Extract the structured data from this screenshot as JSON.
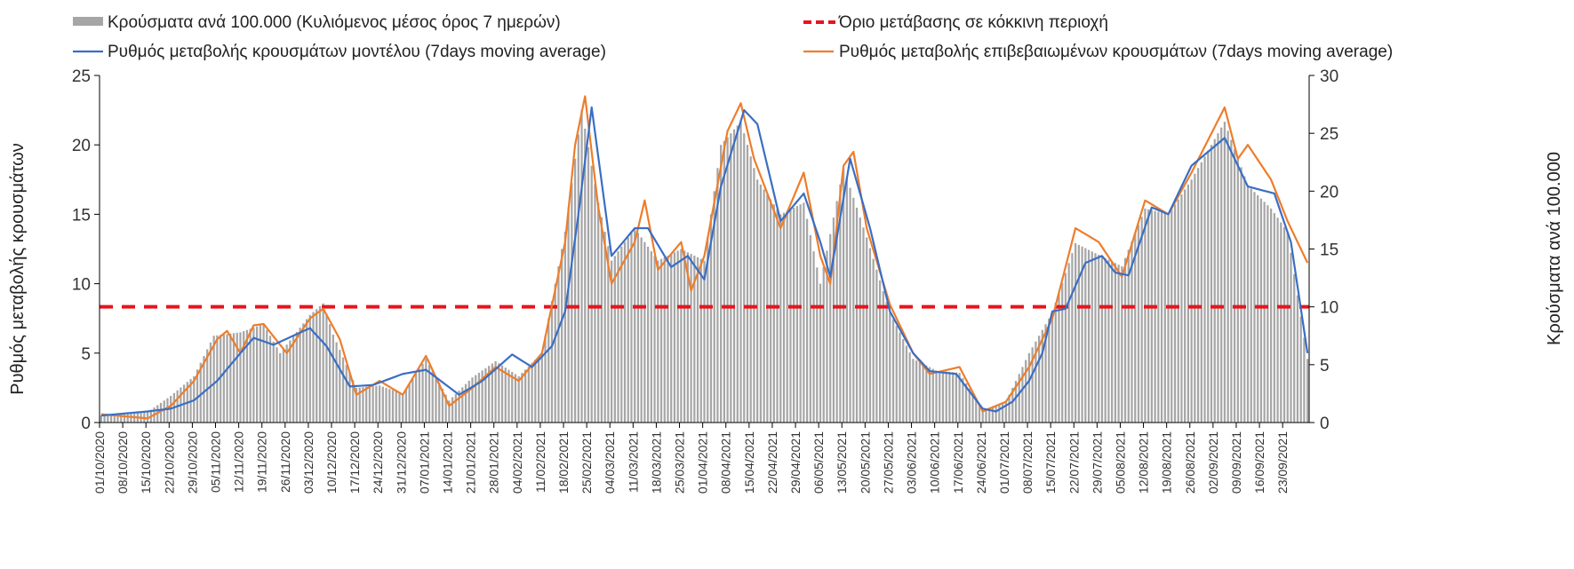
{
  "chart_data": {
    "type": "bar",
    "title": "",
    "grid": false,
    "legend_position": "top",
    "legend": {
      "bars": "Κρούσματα ανά 100.000 (Κυλιόμενος μέσος όρος 7 ημερών)",
      "threshold": "Όριο μετάβασης σε κόκκινη περιοχή",
      "model": "Ρυθμός μεταβολής κρουσμάτων μοντέλου (7days moving average)",
      "confirmed": "Ρυθμός μεταβολής επιβεβαιωμένων κρουσμάτων (7days moving average)"
    },
    "y_left": {
      "label": "Ρυθμός μεταβολής κρουσμάτων",
      "min": 0,
      "max": 25,
      "ticks": [
        "0",
        "5",
        "10",
        "15",
        "20",
        "25"
      ]
    },
    "y_right": {
      "label": "Κρούσματα ανά 100.000",
      "min": 0,
      "max": 30,
      "ticks": [
        "0",
        "5",
        "10",
        "15",
        "20",
        "25",
        "30"
      ]
    },
    "x": {
      "start_date": "01/10/2020",
      "end_date": "30/09/2021",
      "tick_labels": [
        "01/10/2020",
        "08/10/2020",
        "15/10/2020",
        "22/10/2020",
        "29/10/2020",
        "05/11/2020",
        "12/11/2020",
        "19/11/2020",
        "26/11/2020",
        "03/12/2020",
        "10/12/2020",
        "17/12/2020",
        "24/12/2020",
        "31/12/2020",
        "07/01/2021",
        "14/01/2021",
        "21/01/2021",
        "28/01/2021",
        "04/02/2021",
        "11/02/2021",
        "18/02/2021",
        "25/02/2021",
        "04/03/2021",
        "11/03/2021",
        "18/03/2021",
        "25/03/2021",
        "01/04/2021",
        "08/04/2021",
        "15/04/2021",
        "22/04/2021",
        "29/04/2021",
        "06/05/2021",
        "13/05/2021",
        "20/05/2021",
        "27/05/2021",
        "03/06/2021",
        "10/06/2021",
        "17/06/2021",
        "24/06/2021",
        "01/07/2021",
        "08/07/2021",
        "15/07/2021",
        "22/07/2021",
        "29/07/2021",
        "05/08/2021",
        "12/08/2021",
        "19/08/2021",
        "26/08/2021",
        "02/09/2021",
        "09/09/2021",
        "16/09/2021",
        "23/09/2021"
      ]
    },
    "threshold": {
      "axis": "right",
      "value": 10,
      "color": "#e8141c"
    },
    "colors": {
      "bars": "#a6a6a6",
      "model": "#3a6ec4",
      "confirmed": "#ee7d2b",
      "axis": "#000000"
    },
    "series": [
      {
        "name": "Κρούσματα ανά 100.000 (Κυλιόμενος μέσος όρος 7 ημερών)",
        "axis": "right",
        "kind": "bar",
        "anchors": [
          [
            "01/10/2020",
            0.6
          ],
          [
            "08/10/2020",
            0.7
          ],
          [
            "15/10/2020",
            0.9
          ],
          [
            "22/10/2020",
            2.3
          ],
          [
            "29/10/2020",
            4.0
          ],
          [
            "04/11/2020",
            7.5
          ],
          [
            "12/11/2020",
            7.8
          ],
          [
            "19/11/2020",
            8.5
          ],
          [
            "24/11/2020",
            6.0
          ],
          [
            "03/12/2020",
            9.3
          ],
          [
            "07/12/2020",
            10.3
          ],
          [
            "10/12/2020",
            7.6
          ],
          [
            "17/12/2020",
            3.0
          ],
          [
            "24/12/2020",
            3.2
          ],
          [
            "31/12/2020",
            2.5
          ],
          [
            "07/01/2021",
            5.5
          ],
          [
            "14/01/2021",
            1.9
          ],
          [
            "21/01/2021",
            3.9
          ],
          [
            "28/01/2021",
            5.3
          ],
          [
            "04/02/2021",
            4.0
          ],
          [
            "11/02/2021",
            6.0
          ],
          [
            "18/02/2021",
            16.5
          ],
          [
            "23/02/2021",
            27.0
          ],
          [
            "28/02/2021",
            19.0
          ],
          [
            "04/03/2021",
            14.0
          ],
          [
            "11/03/2021",
            16.8
          ],
          [
            "18/03/2021",
            14.0
          ],
          [
            "25/03/2021",
            15.0
          ],
          [
            "01/04/2021",
            14.0
          ],
          [
            "06/04/2021",
            24.0
          ],
          [
            "12/04/2021",
            26.0
          ],
          [
            "17/04/2021",
            21.0
          ],
          [
            "24/04/2021",
            18.0
          ],
          [
            "01/05/2021",
            19.0
          ],
          [
            "06/05/2021",
            12.0
          ],
          [
            "13/05/2021",
            22.0
          ],
          [
            "20/05/2021",
            16.0
          ],
          [
            "27/05/2021",
            9.5
          ],
          [
            "03/06/2021",
            5.5
          ],
          [
            "10/06/2021",
            4.5
          ],
          [
            "17/06/2021",
            4.3
          ],
          [
            "24/06/2021",
            1.1
          ],
          [
            "01/07/2021",
            1.8
          ],
          [
            "08/07/2021",
            6.0
          ],
          [
            "15/07/2021",
            9.5
          ],
          [
            "22/07/2021",
            15.5
          ],
          [
            "29/07/2021",
            14.5
          ],
          [
            "05/08/2021",
            13.5
          ],
          [
            "12/08/2021",
            18.5
          ],
          [
            "19/08/2021",
            18.0
          ],
          [
            "26/08/2021",
            21.0
          ],
          [
            "05/09/2021",
            26.0
          ],
          [
            "12/09/2021",
            20.5
          ],
          [
            "19/09/2021",
            18.5
          ],
          [
            "24/09/2021",
            16.5
          ],
          [
            "30/09/2021",
            5.5
          ]
        ]
      },
      {
        "name": "Ρυθμός μεταβολής κρουσμάτων μοντέλου (7days moving average)",
        "axis": "left",
        "kind": "line",
        "anchors": [
          [
            "01/10/2020",
            0.5
          ],
          [
            "15/10/2020",
            0.8
          ],
          [
            "22/10/2020",
            1.0
          ],
          [
            "29/10/2020",
            1.6
          ],
          [
            "05/11/2020",
            3.0
          ],
          [
            "12/11/2020",
            5.0
          ],
          [
            "16/11/2020",
            6.1
          ],
          [
            "22/11/2020",
            5.6
          ],
          [
            "03/12/2020",
            6.8
          ],
          [
            "08/12/2020",
            5.5
          ],
          [
            "15/12/2020",
            2.6
          ],
          [
            "22/12/2020",
            2.7
          ],
          [
            "31/12/2020",
            3.5
          ],
          [
            "07/01/2021",
            3.8
          ],
          [
            "17/01/2021",
            2.0
          ],
          [
            "24/01/2021",
            3.0
          ],
          [
            "02/02/2021",
            4.9
          ],
          [
            "08/02/2021",
            4.0
          ],
          [
            "14/02/2021",
            5.5
          ],
          [
            "18/02/2021",
            8.0
          ],
          [
            "22/02/2021",
            15.0
          ],
          [
            "26/02/2021",
            22.7
          ],
          [
            "04/03/2021",
            12.0
          ],
          [
            "11/03/2021",
            14.0
          ],
          [
            "15/03/2021",
            14.0
          ],
          [
            "22/03/2021",
            11.2
          ],
          [
            "27/03/2021",
            12.0
          ],
          [
            "01/04/2021",
            10.3
          ],
          [
            "06/04/2021",
            17.0
          ],
          [
            "13/04/2021",
            22.5
          ],
          [
            "17/04/2021",
            21.5
          ],
          [
            "24/04/2021",
            14.5
          ],
          [
            "01/05/2021",
            16.5
          ],
          [
            "06/05/2021",
            13.0
          ],
          [
            "09/05/2021",
            10.5
          ],
          [
            "15/05/2021",
            19.0
          ],
          [
            "21/05/2021",
            14.0
          ],
          [
            "27/05/2021",
            8.0
          ],
          [
            "03/06/2021",
            5.0
          ],
          [
            "08/06/2021",
            3.7
          ],
          [
            "16/06/2021",
            3.5
          ],
          [
            "24/06/2021",
            1.0
          ],
          [
            "28/06/2021",
            0.8
          ],
          [
            "03/07/2021",
            1.5
          ],
          [
            "08/07/2021",
            3.0
          ],
          [
            "12/07/2021",
            5.0
          ],
          [
            "15/07/2021",
            8.0
          ],
          [
            "19/07/2021",
            8.2
          ],
          [
            "25/07/2021",
            11.5
          ],
          [
            "30/07/2021",
            12.0
          ],
          [
            "03/08/2021",
            10.8
          ],
          [
            "07/08/2021",
            10.6
          ],
          [
            "14/08/2021",
            15.5
          ],
          [
            "19/08/2021",
            15.0
          ],
          [
            "26/08/2021",
            18.5
          ],
          [
            "05/09/2021",
            20.5
          ],
          [
            "12/09/2021",
            17.0
          ],
          [
            "20/09/2021",
            16.5
          ],
          [
            "25/09/2021",
            13.0
          ],
          [
            "30/09/2021",
            5.0
          ]
        ]
      },
      {
        "name": "Ρυθμός μεταβολής επιβεβαιωμένων κρουσμάτων (7days moving average)",
        "axis": "left",
        "kind": "line",
        "anchors": [
          [
            "01/10/2020",
            0.6
          ],
          [
            "15/10/2020",
            0.3
          ],
          [
            "22/10/2020",
            1.2
          ],
          [
            "29/10/2020",
            3.0
          ],
          [
            "05/11/2020",
            6.0
          ],
          [
            "08/11/2020",
            6.6
          ],
          [
            "12/11/2020",
            5.0
          ],
          [
            "16/11/2020",
            7.0
          ],
          [
            "19/11/2020",
            7.1
          ],
          [
            "26/11/2020",
            5.0
          ],
          [
            "03/12/2020",
            7.5
          ],
          [
            "07/12/2020",
            8.2
          ],
          [
            "12/12/2020",
            6.0
          ],
          [
            "17/12/2020",
            2.0
          ],
          [
            "24/12/2020",
            3.0
          ],
          [
            "31/12/2020",
            2.0
          ],
          [
            "07/01/2021",
            4.8
          ],
          [
            "14/01/2021",
            1.2
          ],
          [
            "21/01/2021",
            2.5
          ],
          [
            "28/01/2021",
            4.0
          ],
          [
            "04/02/2021",
            3.0
          ],
          [
            "11/02/2021",
            5.0
          ],
          [
            "18/02/2021",
            13.0
          ],
          [
            "21/02/2021",
            20.0
          ],
          [
            "24/02/2021",
            23.5
          ],
          [
            "28/02/2021",
            15.5
          ],
          [
            "04/03/2021",
            10.0
          ],
          [
            "11/03/2021",
            13.0
          ],
          [
            "14/03/2021",
            16.0
          ],
          [
            "18/03/2021",
            11.0
          ],
          [
            "25/03/2021",
            13.0
          ],
          [
            "28/03/2021",
            9.5
          ],
          [
            "01/04/2021",
            12.0
          ],
          [
            "08/04/2021",
            21.0
          ],
          [
            "12/04/2021",
            23.0
          ],
          [
            "16/04/2021",
            19.0
          ],
          [
            "24/04/2021",
            14.0
          ],
          [
            "01/05/2021",
            18.0
          ],
          [
            "06/05/2021",
            12.0
          ],
          [
            "09/05/2021",
            10.0
          ],
          [
            "13/05/2021",
            18.5
          ],
          [
            "16/05/2021",
            19.5
          ],
          [
            "20/05/2021",
            14.0
          ],
          [
            "27/05/2021",
            8.5
          ],
          [
            "03/06/2021",
            5.0
          ],
          [
            "08/06/2021",
            3.5
          ],
          [
            "17/06/2021",
            4.0
          ],
          [
            "24/06/2021",
            0.8
          ],
          [
            "01/07/2021",
            1.5
          ],
          [
            "08/07/2021",
            4.0
          ],
          [
            "15/07/2021",
            7.5
          ],
          [
            "22/07/2021",
            14.0
          ],
          [
            "29/07/2021",
            13.0
          ],
          [
            "05/08/2021",
            10.5
          ],
          [
            "12/08/2021",
            16.0
          ],
          [
            "19/08/2021",
            15.0
          ],
          [
            "26/08/2021",
            18.0
          ],
          [
            "05/09/2021",
            22.7
          ],
          [
            "09/09/2021",
            19.0
          ],
          [
            "12/09/2021",
            20.0
          ],
          [
            "19/09/2021",
            17.5
          ],
          [
            "24/09/2021",
            14.5
          ],
          [
            "30/09/2021",
            11.5
          ]
        ]
      }
    ]
  }
}
